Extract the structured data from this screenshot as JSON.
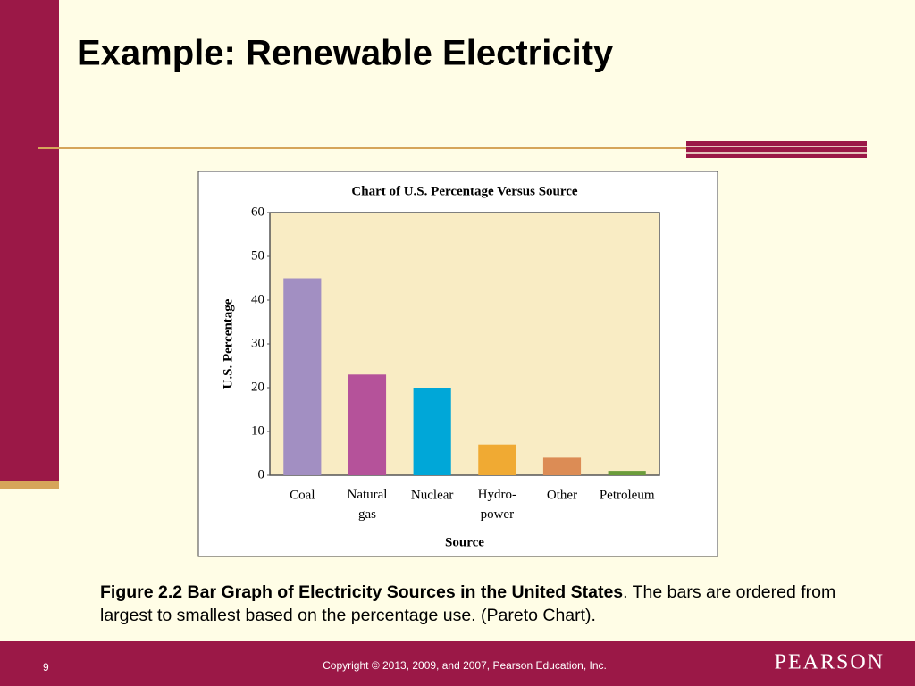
{
  "slide_title": "Example: Renewable Electricity",
  "chart_data": {
    "type": "bar",
    "title": "Chart of U.S. Percentage Versus Source",
    "x_label": "Source",
    "y_label": "U.S. Percentage",
    "categories": [
      "Coal",
      "Natural\ngas",
      "Nuclear",
      "Hydro-\npower",
      "Other",
      "Petroleum"
    ],
    "values": [
      45,
      23,
      20,
      7,
      4,
      1
    ],
    "colors": [
      "#a28fc2",
      "#b5529a",
      "#00a7d8",
      "#f0aa33",
      "#dc8c55",
      "#6b9c3b"
    ],
    "ylim": [
      0,
      60
    ],
    "yticks": [
      0,
      10,
      20,
      30,
      40,
      50,
      60
    ],
    "grid": false
  },
  "caption": {
    "bold": "Figure 2.2 Bar Graph of Electricity Sources in the United States",
    "text": ". The bars are ordered from largest to smallest based on the percentage use. (Pareto Chart)."
  },
  "footer": {
    "page": "9",
    "copyright": "Copyright © 2013, 2009, and 2007, Pearson Education, Inc.",
    "brand": "PEARSON"
  }
}
